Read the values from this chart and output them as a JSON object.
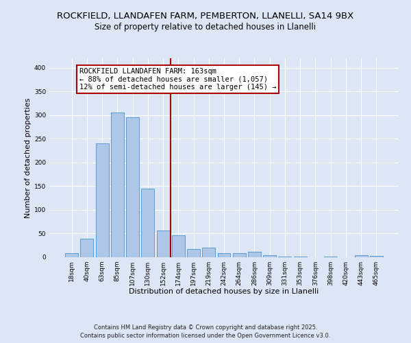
{
  "title": "ROCKFIELD, LLANDAFEN FARM, PEMBERTON, LLANELLI, SA14 9BX",
  "subtitle": "Size of property relative to detached houses in Llanelli",
  "xlabel": "Distribution of detached houses by size in Llanelli",
  "ylabel": "Number of detached properties",
  "bar_labels": [
    "18sqm",
    "40sqm",
    "63sqm",
    "85sqm",
    "107sqm",
    "130sqm",
    "152sqm",
    "174sqm",
    "197sqm",
    "219sqm",
    "242sqm",
    "264sqm",
    "286sqm",
    "309sqm",
    "331sqm",
    "353sqm",
    "376sqm",
    "398sqm",
    "420sqm",
    "443sqm",
    "465sqm"
  ],
  "bar_values": [
    8,
    39,
    241,
    306,
    295,
    145,
    56,
    47,
    18,
    20,
    9,
    8,
    12,
    4,
    2,
    2,
    0,
    1,
    0,
    4,
    3
  ],
  "bar_color": "#aec6e8",
  "bar_edge_color": "#5b9bd5",
  "vline_x": 7,
  "vline_color": "#aa0000",
  "annotation_title": "ROCKFIELD LLANDAFEN FARM: 163sqm",
  "annotation_line1": "← 88% of detached houses are smaller (1,057)",
  "annotation_line2": "12% of semi-detached houses are larger (145) →",
  "annotation_box_facecolor": "#ffffff",
  "annotation_box_edgecolor": "#aa0000",
  "ylim": [
    0,
    420
  ],
  "yticks": [
    0,
    50,
    100,
    150,
    200,
    250,
    300,
    350,
    400
  ],
  "footnote1": "Contains HM Land Registry data © Crown copyright and database right 2025.",
  "footnote2": "Contains public sector information licensed under the Open Government Licence v3.0.",
  "background_color": "#dce6f5",
  "plot_bg_color": "#dce6f5",
  "title_fontsize": 9.5,
  "subtitle_fontsize": 8.5,
  "axis_label_fontsize": 8,
  "tick_fontsize": 6.5,
  "annotation_fontsize": 7.5,
  "footnote_fontsize": 6.0
}
